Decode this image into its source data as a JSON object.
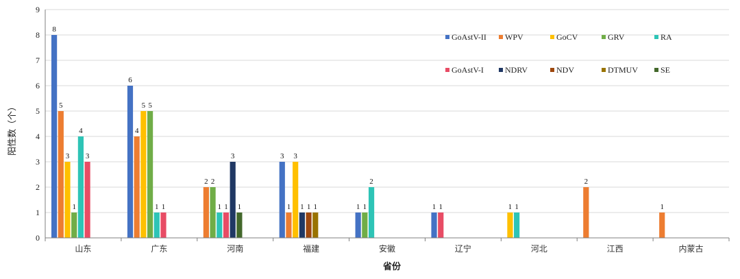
{
  "chart_data": {
    "type": "bar",
    "title": "",
    "xlabel": "省份",
    "ylabel": "阳性数（个）",
    "ylim": [
      0,
      9
    ],
    "yticks": [
      0,
      1,
      2,
      3,
      4,
      5,
      6,
      7,
      8,
      9
    ],
    "grid": true,
    "legend_position": "top-right",
    "categories": [
      "山东",
      "广东",
      "河南",
      "福建",
      "安徽",
      "辽宁",
      "河北",
      "江西",
      "内蒙古"
    ],
    "series": [
      {
        "name": "GoAstV-II",
        "color": "#4472C4",
        "values": [
          8,
          6,
          0,
          3,
          1,
          1,
          0,
          0,
          0
        ]
      },
      {
        "name": "WPV",
        "color": "#ED7D31",
        "values": [
          5,
          4,
          2,
          1,
          0,
          0,
          0,
          2,
          1
        ]
      },
      {
        "name": "GoCV",
        "color": "#FFC000",
        "values": [
          3,
          5,
          0,
          3,
          0,
          0,
          1,
          0,
          0
        ]
      },
      {
        "name": "GRV",
        "color": "#70AD47",
        "values": [
          1,
          5,
          2,
          0,
          1,
          0,
          0,
          0,
          0
        ]
      },
      {
        "name": "RA",
        "color": "#2EC4B6",
        "values": [
          4,
          1,
          1,
          0,
          2,
          0,
          1,
          0,
          0
        ]
      },
      {
        "name": "GoAstV-I",
        "color": "#E84C65",
        "values": [
          3,
          1,
          1,
          0,
          0,
          1,
          0,
          0,
          0
        ]
      },
      {
        "name": "NDRV",
        "color": "#203864",
        "values": [
          0,
          0,
          3,
          1,
          0,
          0,
          0,
          0,
          0
        ]
      },
      {
        "name": "NDV",
        "color": "#9E480E",
        "values": [
          0,
          0,
          0,
          1,
          0,
          0,
          0,
          0,
          0
        ]
      },
      {
        "name": "DTMUV",
        "color": "#997300",
        "values": [
          0,
          0,
          0,
          1,
          0,
          0,
          0,
          0,
          0
        ]
      },
      {
        "name": "SE",
        "color": "#43682B",
        "values": [
          0,
          0,
          1,
          0,
          0,
          0,
          0,
          0,
          0
        ]
      }
    ]
  }
}
